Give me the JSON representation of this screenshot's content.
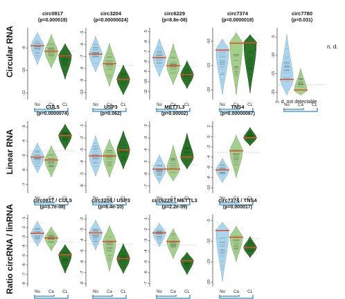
{
  "figure": {
    "row_labels": [
      "Circular RNA",
      "Linear RNA",
      "Ratio circRNA / linRNA"
    ],
    "legend_note": "n. d.  not detectable",
    "nd_label": "n. d.",
    "categories": [
      "No",
      "Ca",
      "CL"
    ],
    "colors": {
      "No": "#a8d4ec",
      "Ca": "#9fcc86",
      "CL": "#1f6e1f",
      "median": "#e0522a",
      "bracket": "#2f86c8"
    }
  },
  "chart_data": [
    {
      "type": "violin",
      "row": 0,
      "col": 0,
      "title": "circ0817",
      "subtitle": "(p=0.000019)",
      "yticks": [
        -8,
        -10,
        -12
      ],
      "ylim": [
        -12.6,
        -6.2
      ],
      "series": [
        {
          "name": "No",
          "median": -7.8,
          "min": -9.5,
          "max": -6.6
        },
        {
          "name": "Ca",
          "median": -8.3,
          "min": -9.8,
          "max": -6.8
        },
        {
          "name": "CL",
          "median": -8.7,
          "min": -10.8,
          "max": -7.6
        }
      ]
    },
    {
      "type": "violin",
      "row": 0,
      "col": 1,
      "title": "circ3204",
      "subtitle": "(p=0.00000024)",
      "yticks": [
        -5,
        -6,
        -7,
        -8,
        -9,
        -10
      ],
      "ylim": [
        -10.6,
        -4.6
      ],
      "series": [
        {
          "name": "No",
          "median": -6.8,
          "min": -8.3,
          "max": -5.3
        },
        {
          "name": "Ca",
          "median": -7.6,
          "min": -9.5,
          "max": -5.9
        },
        {
          "name": "CL",
          "median": -8.9,
          "min": -10.2,
          "max": -7.7
        }
      ]
    },
    {
      "type": "violin",
      "row": 0,
      "col": 2,
      "title": "circ6229",
      "subtitle": "(p=8.8e-08)",
      "yticks": [
        -5,
        -6,
        -7,
        -8,
        -9,
        -10,
        -11
      ],
      "ylim": [
        -11.8,
        -4.6
      ],
      "series": [
        {
          "name": "No",
          "median": -7.6,
          "min": -9.5,
          "max": -5.7
        },
        {
          "name": "Ca",
          "median": -8.4,
          "min": -10.3,
          "max": -6.2
        },
        {
          "name": "CL",
          "median": -9.3,
          "min": -10.7,
          "max": -7.9
        }
      ]
    },
    {
      "type": "violin",
      "row": 0,
      "col": 3,
      "title": "circ7374",
      "subtitle": "(p=0.0000018)",
      "yticks": [
        -10,
        -15,
        -20
      ],
      "ylim": [
        -22,
        -7.2
      ],
      "series": [
        {
          "name": "No",
          "median": -11.8,
          "min": -21.0,
          "max": -9.5
        },
        {
          "name": "Ca",
          "median": -10.4,
          "min": -21.0,
          "max": -8.2
        },
        {
          "name": "CL",
          "median": -10.3,
          "min": -20.7,
          "max": -8.6
        }
      ]
    },
    {
      "type": "violin",
      "row": 0,
      "col": 4,
      "title": "circ7780",
      "subtitle": "(p=0.031)",
      "yticks": [
        -5,
        -10,
        -15,
        -20
      ],
      "ylim": [
        -22,
        -2.5
      ],
      "series": [
        {
          "name": "No",
          "median": -16.5,
          "min": -20.8,
          "max": -4.3
        },
        {
          "name": "Ca",
          "median": -19.4,
          "min": -20.8,
          "max": -13.5
        },
        {
          "name": "CL",
          "median": null,
          "min": null,
          "max": null
        }
      ]
    },
    {
      "type": "violin",
      "row": 1,
      "col": 0,
      "title": "CUL5",
      "subtitle": "(p=0.0000074)",
      "yticks": [
        -3,
        -4,
        -5,
        -6,
        -7
      ],
      "ylim": [
        -7.6,
        -2.6
      ],
      "series": [
        {
          "name": "No",
          "median": -5.1,
          "min": -6.2,
          "max": -4.1
        },
        {
          "name": "Ca",
          "median": -5.3,
          "min": -6.5,
          "max": -4.3
        },
        {
          "name": "CL",
          "median": -3.6,
          "min": -4.6,
          "max": -2.8
        }
      ]
    },
    {
      "type": "violin",
      "row": 1,
      "col": 1,
      "title": "USP3",
      "subtitle": "(p=0.062)",
      "yticks": [
        -1,
        -2,
        -3,
        -4,
        -5,
        -6
      ],
      "ylim": [
        -6.6,
        -0.6
      ],
      "series": [
        {
          "name": "No",
          "median": -3.5,
          "min": -5.2,
          "max": -1.8
        },
        {
          "name": "Ca",
          "median": -3.5,
          "min": -5.3,
          "max": -2.1
        },
        {
          "name": "CL",
          "median": -3.0,
          "min": -4.6,
          "max": -1.4
        }
      ]
    },
    {
      "type": "violin",
      "row": 1,
      "col": 2,
      "title": "METTL3",
      "subtitle": "(p=0.00002)",
      "yticks": [
        -2,
        -3,
        -4,
        -5,
        -6,
        -7
      ],
      "ylim": [
        -7.6,
        -1.6
      ],
      "series": [
        {
          "name": "No",
          "median": -5.6,
          "min": -6.8,
          "max": -4.4
        },
        {
          "name": "Ca",
          "median": -5.6,
          "min": -6.6,
          "max": -3.6
        },
        {
          "name": "CL",
          "median": -4.6,
          "min": -5.6,
          "max": -2.6
        }
      ]
    },
    {
      "type": "violin",
      "row": 1,
      "col": 3,
      "title": "TNS4",
      "subtitle": "(p=0.00000087)",
      "yticks": [
        2,
        0,
        -2,
        -4,
        -6,
        -8,
        -10
      ],
      "ylim": [
        -11,
        3
      ],
      "series": [
        {
          "name": "No",
          "median": -6.5,
          "min": -9.0,
          "max": -4.2
        },
        {
          "name": "Ca",
          "median": -2.8,
          "min": -8.0,
          "max": 0.3
        },
        {
          "name": "CL",
          "median": -0.2,
          "min": -1.8,
          "max": 1.8
        }
      ]
    },
    {
      "type": "violin",
      "row": 2,
      "col": 0,
      "title": "circ0817 / CUL5",
      "subtitle": "(p=3.7e-08)",
      "yticks": [
        -1,
        -2,
        -3,
        -4,
        -5,
        -6,
        -7,
        -8
      ],
      "ylim": [
        -8.3,
        -0.6
      ],
      "series": [
        {
          "name": "No",
          "median": -2.6,
          "min": -4.0,
          "max": -1.3
        },
        {
          "name": "Ca",
          "median": -3.1,
          "min": -4.5,
          "max": -1.9
        },
        {
          "name": "CL",
          "median": -4.9,
          "min": -6.9,
          "max": -3.8
        }
      ]
    },
    {
      "type": "violin",
      "row": 2,
      "col": 1,
      "title": "circ3204 / USP3",
      "subtitle": "(p=6.4e-10)",
      "yticks": [
        -2,
        -3,
        -4,
        -5,
        -6,
        -7,
        -8
      ],
      "ylim": [
        -8.3,
        -1.6
      ],
      "series": [
        {
          "name": "No",
          "median": -3.3,
          "min": -4.9,
          "max": -2.1
        },
        {
          "name": "Ca",
          "median": -4.1,
          "min": -6.9,
          "max": -2.6
        },
        {
          "name": "CL",
          "median": -5.7,
          "min": -7.1,
          "max": -4.3
        }
      ]
    },
    {
      "type": "violin",
      "row": 2,
      "col": 2,
      "title": "circ6229 / METTL3",
      "subtitle": "(p=2.2e-09)",
      "yticks": [
        -1,
        -2,
        -3,
        -4,
        -5,
        -6,
        -7
      ],
      "ylim": [
        -7.3,
        -0.6
      ],
      "series": [
        {
          "name": "No",
          "median": -2.3,
          "min": -3.6,
          "max": -1.4
        },
        {
          "name": "Ca",
          "median": -3.1,
          "min": -4.7,
          "max": -1.9
        },
        {
          "name": "CL",
          "median": -4.9,
          "min": -6.2,
          "max": -4.1
        }
      ]
    },
    {
      "type": "violin",
      "row": 2,
      "col": 3,
      "title": "circ7374 / TNS4",
      "subtitle": "(p=0.000017)",
      "yticks": [
        -5,
        -10,
        -15,
        -20
      ],
      "ylim": [
        -21,
        -3.5
      ],
      "series": [
        {
          "name": "No",
          "median": -7.4,
          "min": -19.8,
          "max": -5.3
        },
        {
          "name": "Ca",
          "median": -9.0,
          "min": -15.0,
          "max": -6.3
        },
        {
          "name": "CL",
          "median": -11.5,
          "min": -14.0,
          "max": -8.8
        }
      ]
    }
  ]
}
